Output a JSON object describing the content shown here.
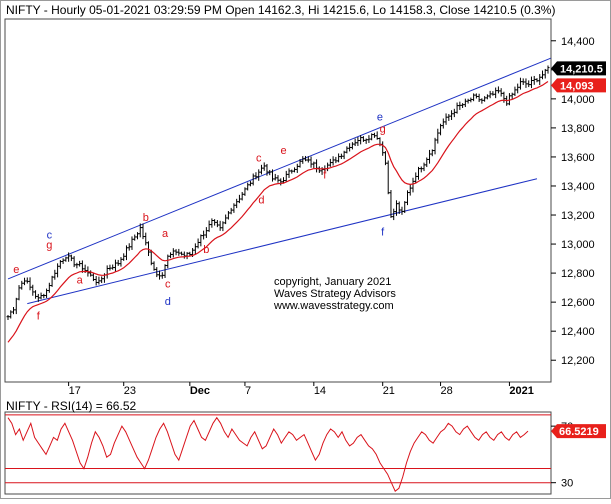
{
  "chart_data": [
    {
      "type": "ohlc",
      "title": "NIFTY - Hourly 05-01-2021 03:29:59 PM Open 14162.3, Hi 14215.6, Lo 14158.3, Close 14210.5 (0.3%)",
      "ylim": [
        12050,
        14550
      ],
      "yticks": [
        12200,
        12400,
        12600,
        12800,
        13000,
        13200,
        13400,
        13600,
        13800,
        14000,
        14200,
        14400
      ],
      "ytick_labels": [
        "12,200",
        "12,400",
        "12,600",
        "12,800",
        "13,000",
        "13,200",
        "13,400",
        "13,600",
        "13,800",
        "14,000",
        "14,200",
        "14,400"
      ],
      "xticks": [
        {
          "label": "17",
          "bar": 22
        },
        {
          "label": "23",
          "bar": 42
        },
        {
          "label": "Dec",
          "bar": 66,
          "bold": true
        },
        {
          "label": "7",
          "bar": 86
        },
        {
          "label": "14",
          "bar": 111
        },
        {
          "label": "21",
          "bar": 136
        },
        {
          "label": "28",
          "bar": 157
        },
        {
          "label": "2021",
          "bar": 182,
          "bold": true
        }
      ],
      "bar_count": 197,
      "price_path": [
        [
          0,
          12500
        ],
        [
          2,
          12560
        ],
        [
          4,
          12700
        ],
        [
          6,
          12760
        ],
        [
          8,
          12700
        ],
        [
          11,
          12620
        ],
        [
          14,
          12680
        ],
        [
          17,
          12810
        ],
        [
          19,
          12880
        ],
        [
          21,
          12920
        ],
        [
          24,
          12870
        ],
        [
          27,
          12840
        ],
        [
          30,
          12780
        ],
        [
          33,
          12730
        ],
        [
          36,
          12830
        ],
        [
          40,
          12870
        ],
        [
          43,
          12960
        ],
        [
          46,
          13050
        ],
        [
          48,
          13110
        ],
        [
          50,
          13000
        ],
        [
          52,
          12880
        ],
        [
          54,
          12790
        ],
        [
          56,
          12800
        ],
        [
          58,
          12910
        ],
        [
          61,
          12950
        ],
        [
          64,
          12920
        ],
        [
          66,
          12930
        ],
        [
          70,
          13050
        ],
        [
          74,
          13150
        ],
        [
          77,
          13100
        ],
        [
          81,
          13250
        ],
        [
          84,
          13320
        ],
        [
          87,
          13400
        ],
        [
          90,
          13480
        ],
        [
          93,
          13540
        ],
        [
          96,
          13450
        ],
        [
          99,
          13430
        ],
        [
          101,
          13470
        ],
        [
          104,
          13530
        ],
        [
          107,
          13580
        ],
        [
          110,
          13560
        ],
        [
          113,
          13520
        ],
        [
          117,
          13550
        ],
        [
          121,
          13620
        ],
        [
          124,
          13680
        ],
        [
          127,
          13720
        ],
        [
          130,
          13730
        ],
        [
          133,
          13760
        ],
        [
          135,
          13700
        ],
        [
          137,
          13560
        ],
        [
          139,
          13180
        ],
        [
          141,
          13270
        ],
        [
          143,
          13210
        ],
        [
          145,
          13350
        ],
        [
          148,
          13480
        ],
        [
          151,
          13560
        ],
        [
          154,
          13660
        ],
        [
          157,
          13820
        ],
        [
          160,
          13880
        ],
        [
          163,
          13940
        ],
        [
          166,
          13970
        ],
        [
          169,
          14010
        ],
        [
          172,
          13990
        ],
        [
          175,
          14020
        ],
        [
          178,
          14050
        ],
        [
          181,
          13980
        ],
        [
          183,
          14030
        ],
        [
          186,
          14110
        ],
        [
          189,
          14100
        ],
        [
          192,
          14140
        ],
        [
          195,
          14180
        ],
        [
          196,
          14210
        ]
      ],
      "series": [
        {
          "name": "",
          "kind": "moving-average",
          "color": "#d9131b"
        }
      ],
      "trendlines": [
        {
          "color": "#1f33c4",
          "from": {
            "bar": 0,
            "y": 12760
          },
          "to": {
            "bar": 197,
            "y": 14280
          }
        },
        {
          "color": "#1f33c4",
          "from": {
            "bar": 7,
            "y": 12590
          },
          "to": {
            "bar": 192,
            "y": 13450
          }
        }
      ],
      "wave_labels": [
        {
          "text": "e",
          "bar": 3,
          "y": 12800,
          "color": "#d9131b"
        },
        {
          "text": "f",
          "bar": 11,
          "y": 12480,
          "color": "#d9131b"
        },
        {
          "text": "c",
          "bar": 15,
          "y": 13040,
          "color": "#1f33c4"
        },
        {
          "text": "g",
          "bar": 15,
          "y": 12970,
          "color": "#d9131b"
        },
        {
          "text": "a",
          "bar": 26,
          "y": 12730,
          "color": "#d9131b"
        },
        {
          "text": "b",
          "bar": 50,
          "y": 13160,
          "color": "#d9131b"
        },
        {
          "text": "a",
          "bar": 57,
          "y": 13050,
          "color": "#d9131b"
        },
        {
          "text": "b",
          "bar": 72,
          "y": 12940,
          "color": "#d9131b"
        },
        {
          "text": "c",
          "bar": 58,
          "y": 12700,
          "color": "#d9131b"
        },
        {
          "text": "d",
          "bar": 58,
          "y": 12580,
          "color": "#1f33c4"
        },
        {
          "text": "c",
          "bar": 91,
          "y": 13570,
          "color": "#d9131b"
        },
        {
          "text": "d",
          "bar": 92,
          "y": 13280,
          "color": "#d9131b"
        },
        {
          "text": "e",
          "bar": 100,
          "y": 13620,
          "color": "#d9131b"
        },
        {
          "text": "f",
          "bar": 115,
          "y": 13450,
          "color": "#d9131b"
        },
        {
          "text": "e",
          "bar": 135,
          "y": 13850,
          "color": "#1f33c4"
        },
        {
          "text": "g",
          "bar": 136,
          "y": 13770,
          "color": "#d9131b"
        },
        {
          "text": "f",
          "bar": 136,
          "y": 13060,
          "color": "#1f33c4"
        }
      ],
      "price_labels": [
        {
          "text": "14,210.5",
          "y": 14210,
          "bg": "#000000",
          "fg": "#ffffff"
        },
        {
          "text": "14,093",
          "y": 14093,
          "bg": "#e8201b",
          "fg": "#ffffff"
        }
      ],
      "annotations": [
        "copyright, January 2021",
        "Waves Strategy Advisors",
        "www.wavesstrategy.com"
      ],
      "grid": false
    },
    {
      "type": "line",
      "title": "NIFTY - RSI(14) = 66.52",
      "ylim": [
        22,
        80
      ],
      "yticks": [
        30,
        70
      ],
      "ytick_labels": [
        "30",
        "70"
      ],
      "hlines": [
        30,
        40,
        78
      ],
      "series": [
        {
          "name": "RSI(14)",
          "color": "#d9131b",
          "values": [
            76,
            72,
            64,
            68,
            60,
            66,
            72,
            62,
            58,
            54,
            50,
            56,
            62,
            60,
            68,
            72,
            66,
            60,
            52,
            44,
            40,
            48,
            58,
            66,
            62,
            56,
            48,
            50,
            58,
            64,
            70,
            66,
            60,
            54,
            48,
            44,
            40,
            46,
            54,
            62,
            68,
            72,
            66,
            58,
            50,
            46,
            54,
            62,
            70,
            74,
            68,
            62,
            60,
            66,
            72,
            76,
            72,
            66,
            62,
            68,
            64,
            60,
            58,
            56,
            62,
            66,
            60,
            54,
            56,
            62,
            68,
            64,
            58,
            62,
            66,
            64,
            60,
            62,
            64,
            58,
            52,
            46,
            50,
            58,
            64,
            68,
            66,
            62,
            66,
            60,
            56,
            58,
            62,
            64,
            60,
            56,
            54,
            50,
            44,
            40,
            36,
            30,
            24,
            26,
            34,
            44,
            52,
            58,
            62,
            66,
            64,
            60,
            58,
            62,
            66,
            68,
            72,
            70,
            66,
            64,
            68,
            70,
            66,
            62,
            60,
            64,
            66,
            62,
            60,
            64,
            66,
            62,
            60,
            64,
            66,
            62,
            64,
            66.5
          ]
        },
        {
          "name": "",
          "kind": "value-tag",
          "value_label": "66.5219",
          "bg": "#e8201b",
          "fg": "#ffffff"
        }
      ]
    }
  ]
}
